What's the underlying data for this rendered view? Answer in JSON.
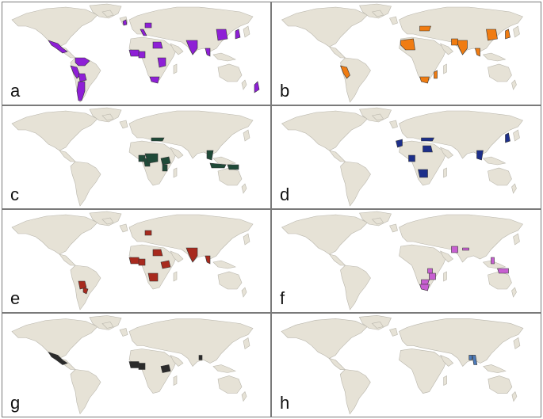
{
  "panels": [
    {
      "label": "a",
      "color": "#8e1fd6",
      "countries": [
        "mexico-central",
        "colombia-venezuela",
        "peru",
        "bolivia",
        "argentina",
        "uk",
        "italy",
        "poland",
        "egypt",
        "west-africa",
        "nigeria",
        "east-africa",
        "southern-africa",
        "india",
        "thailand",
        "china-east",
        "japan",
        "new-zealand"
      ]
    },
    {
      "label": "b",
      "color": "#f07c12",
      "countries": [
        "peru",
        "algeria",
        "ukraine",
        "india",
        "pakistan",
        "china-east",
        "japan",
        "southern-africa",
        "madagascar",
        "thailand"
      ]
    },
    {
      "label": "c",
      "color": "#1f4a38",
      "countries": [
        "nigeria",
        "cameroon",
        "central-africa",
        "ethiopia",
        "kenya",
        "turkey",
        "indochina",
        "indonesia",
        "png"
      ]
    },
    {
      "label": "d",
      "color": "#1d2f8a",
      "countries": [
        "morocco",
        "egypt",
        "turkey",
        "drc-south",
        "nigeria",
        "indochina",
        "japan"
      ]
    },
    {
      "label": "e",
      "color": "#a82a1e",
      "countries": [
        "paraguay",
        "bolivia",
        "poland",
        "west-africa",
        "nigeria",
        "egypt",
        "ethiopia",
        "drc-south",
        "india",
        "thailand"
      ]
    },
    {
      "label": "f",
      "color": "#c75fd1",
      "countries": [
        "pakistan",
        "nepal",
        "uganda",
        "tanzania",
        "zambia",
        "southern-africa",
        "philippines",
        "png"
      ]
    },
    {
      "label": "g",
      "color": "#2b2b2b",
      "countries": [
        "mexico-central",
        "west-africa",
        "nigeria",
        "ethiopia",
        "bangladesh"
      ]
    },
    {
      "label": "h",
      "color": "#4d7ab8",
      "countries": [
        "bangladesh",
        "myanmar"
      ]
    }
  ]
}
